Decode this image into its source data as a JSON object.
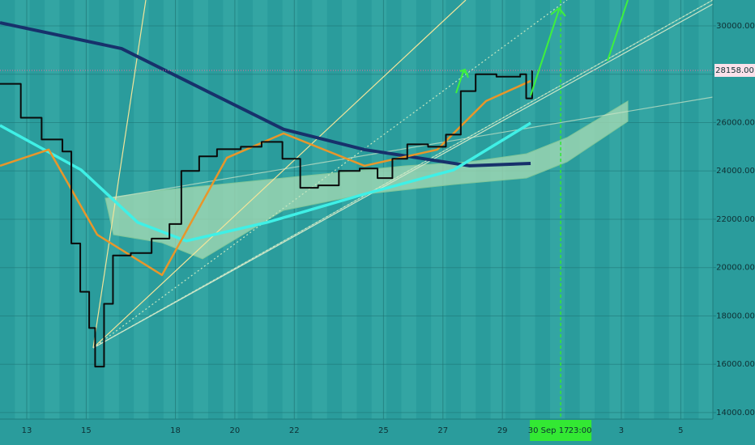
{
  "chart_data": {
    "type": "line",
    "xlim": [
      12.1,
      36.08
    ],
    "ylim": [
      13730,
      31070
    ],
    "xticks": [
      13,
      15,
      18,
      20,
      22,
      25,
      27,
      29,
      {
        "value": 33,
        "label": "3"
      },
      {
        "value": 35,
        "label": "5"
      }
    ],
    "yticks": [
      {
        "value": 14000,
        "label": "14000.00"
      },
      {
        "value": 16000,
        "label": "16000.00"
      },
      {
        "value": 18000,
        "label": "18000.00"
      },
      {
        "value": 20000,
        "label": "20000.00"
      },
      {
        "value": 22000,
        "label": "22000.00"
      },
      {
        "value": 24000,
        "label": "24000.00"
      },
      {
        "value": 26000,
        "label": "26000.00"
      },
      {
        "value": 28000,
        "label": "28000.00"
      },
      {
        "value": 30000,
        "label": "30000.00"
      }
    ],
    "grid": true,
    "price_line": {
      "value": 28158,
      "label": "28158.00",
      "color": "#f06aa0"
    },
    "cursor": {
      "x": 30.96,
      "date_label": "30 Sep 17",
      "time_label": "23:00",
      "color": "#33e833"
    },
    "series": [
      {
        "color": "#17316b",
        "width": 4,
        "x": [
          12.1,
          16.19,
          18.91,
          21.64,
          24.36,
          27.9,
          29.95
        ],
        "values": [
          30130,
          29060,
          27390,
          25720,
          24880,
          24210,
          24310
        ]
      },
      {
        "color": "#3ff0e6",
        "width": 3.5,
        "x": [
          12.1,
          14.83,
          16.73,
          18.37,
          21.09,
          24.36,
          27.36,
          29.95
        ],
        "values": [
          25880,
          24040,
          21870,
          21100,
          21870,
          23040,
          24040,
          25980
        ]
      },
      {
        "color": "#e8962a",
        "width": 2.5,
        "x": [
          12.1,
          13.74,
          15.37,
          17.55,
          19.73,
          21.64,
          24.36,
          26.81,
          28.45,
          29.95
        ],
        "values": [
          24210,
          24880,
          21360,
          19690,
          24540,
          25550,
          24210,
          24880,
          26890,
          27720
        ]
      },
      {
        "color": "#0a0a0a",
        "width": 2,
        "style": "step",
        "x": [
          12.1,
          12.8,
          13.5,
          14.2,
          14.5,
          14.8,
          15.1,
          15.3,
          15.6,
          15.9,
          16.5,
          17.2,
          17.8,
          18.2,
          18.8,
          19.4,
          20.2,
          20.9,
          21.6,
          22.2,
          22.8,
          23.5,
          24.2,
          24.8,
          25.3,
          25.8,
          26.5,
          27.1,
          27.6,
          28.1,
          28.8,
          29.6,
          29.8,
          30.0
        ],
        "values": [
          27600,
          26200,
          25300,
          24800,
          21000,
          19000,
          17500,
          15900,
          18500,
          20500,
          20600,
          21200,
          21800,
          24000,
          24600,
          24900,
          25000,
          25200,
          24500,
          23300,
          23400,
          24000,
          24100,
          23700,
          24500,
          25100,
          25000,
          25500,
          27300,
          28000,
          27900,
          28000,
          27000,
          28158
        ]
      }
    ]
  }
}
